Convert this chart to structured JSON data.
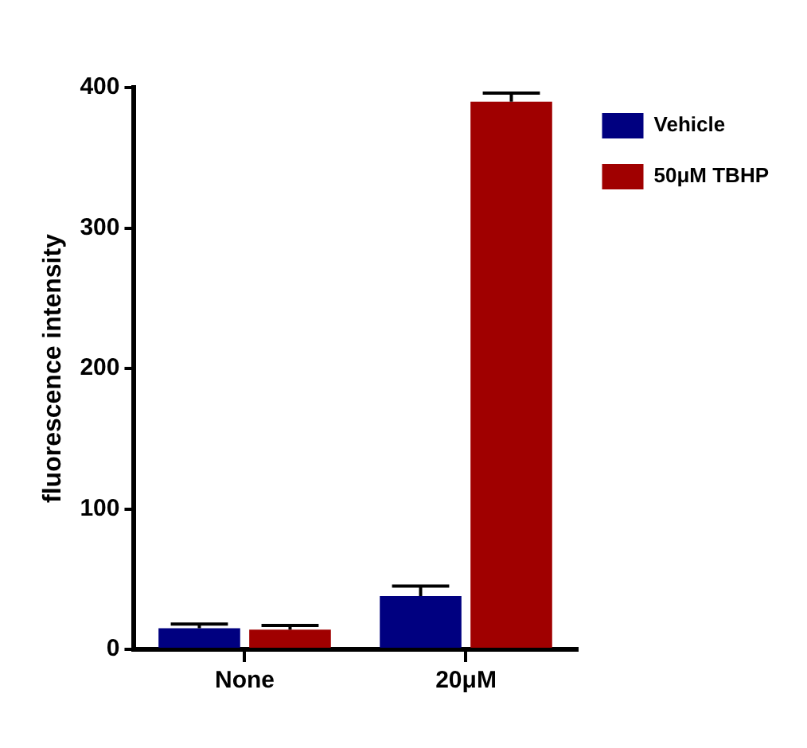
{
  "chart_data": {
    "type": "bar",
    "ylabel": "fluorescence intensity",
    "categories": [
      "None",
      "20μM"
    ],
    "series": [
      {
        "name": "Vehicle",
        "color": "#000080",
        "values": [
          15,
          38
        ],
        "errors": [
          [
            15,
            18
          ],
          [
            38,
            45
          ]
        ]
      },
      {
        "name": "50μM TBHP",
        "color": "#a00000",
        "values": [
          14,
          390
        ],
        "errors": [
          [
            14,
            17
          ],
          [
            390,
            396
          ]
        ]
      }
    ],
    "ylim": [
      0,
      400
    ],
    "yticks": [
      0,
      100,
      200,
      300,
      400
    ],
    "grid": false,
    "legend": "top right"
  }
}
